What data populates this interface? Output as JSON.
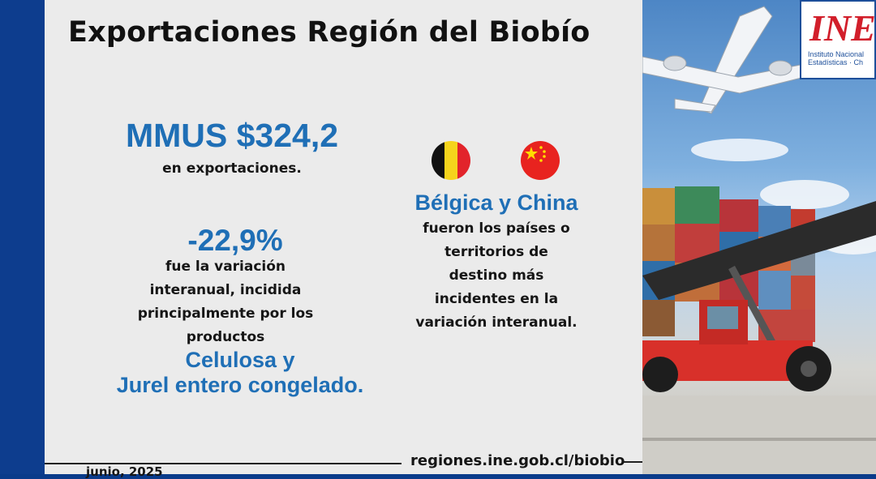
{
  "title": "Exportaciones Región del Biobío",
  "exports": {
    "amount": "MMUS $324,2",
    "caption": "en exportaciones."
  },
  "variation": {
    "value": "-22,9%",
    "lines": [
      "fue la variación",
      "interanual, incidida",
      "principalmente por los",
      "productos"
    ],
    "products": [
      "Celulosa y",
      "Jurel entero congelado."
    ]
  },
  "destinations": {
    "countries": "Bélgica y China",
    "lines": [
      "fueron los países o",
      "territorios de",
      "destino más",
      "incidentes en la",
      "variación interanual."
    ],
    "flags": [
      "belgium-flag",
      "china-flag"
    ]
  },
  "footer": {
    "url": "regiones.ine.gob.cl/biobio",
    "date": "junio, 2025"
  },
  "logo": {
    "mark": "INE",
    "line1": "Instituto Nacional",
    "line2": "Estadísticas · Ch"
  },
  "colors": {
    "accent_blue": "#1f6fb6",
    "left_bar": "#0d3d8e",
    "panel": "#ebebeb",
    "logo_red": "#d21f2b"
  }
}
